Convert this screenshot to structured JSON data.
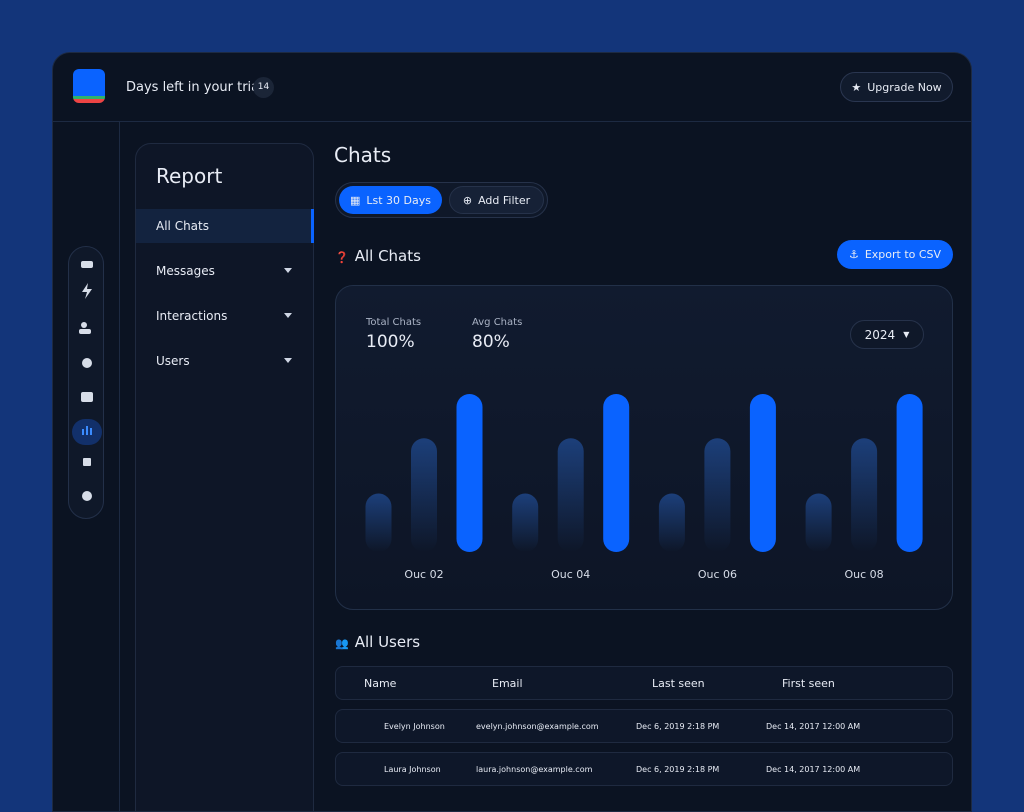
{
  "header": {
    "trial_text": "Days left in your trial.",
    "trial_days": "14",
    "upgrade": "Upgrade Now"
  },
  "sidebar": {
    "title": "Report",
    "items": [
      "All Chats",
      "Messages",
      "Interactions",
      "Users"
    ]
  },
  "main": {
    "title": "Chats",
    "filters": [
      "Lst 30 Days",
      "Add Filter"
    ],
    "section": "All Chats",
    "export": "Export to CSV"
  },
  "stats": [
    {
      "label": "Total Chats",
      "value": "100%"
    },
    {
      "label": "Avg Chats",
      "value": "80%"
    }
  ],
  "year": "2024",
  "chart_data": {
    "type": "bar",
    "categories": [
      "Ouc 02",
      "Ouc 04",
      "Ouc 06",
      "Ouc 08"
    ],
    "series": [
      {
        "color": "#1c3f7a",
        "values": [
          37,
          37,
          37,
          37
        ]
      },
      {
        "color": "#1c3f7a",
        "values": [
          72,
          72,
          72,
          72
        ]
      },
      {
        "color": "#0a63ff",
        "values": [
          100,
          100,
          100,
          100
        ]
      }
    ],
    "ylim": [
      0,
      100
    ]
  },
  "users": {
    "title": "All Users",
    "columns": [
      "Name",
      "Email",
      "Last seen",
      "First seen"
    ],
    "rows": [
      [
        "Evelyn Johnson",
        "evelyn.johnson@example.com",
        "Dec 6, 2019 2:18 PM",
        "Dec 14, 2017 12:00 AM"
      ],
      [
        "Laura Johnson",
        "laura.johnson@example.com",
        "Dec 6, 2019 2:18 PM",
        "Dec 14, 2017 12:00 AM"
      ]
    ]
  }
}
